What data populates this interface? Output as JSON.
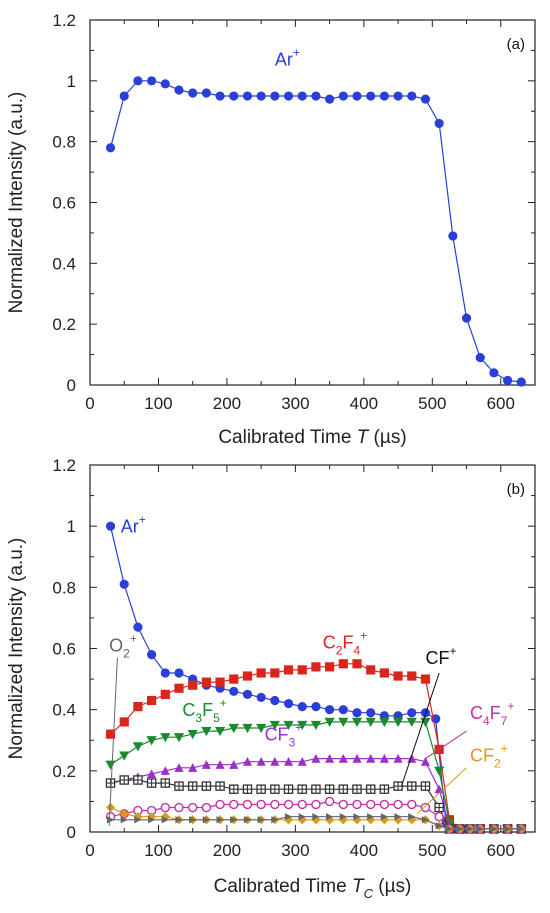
{
  "chart_data": [
    {
      "type": "line",
      "panel_label": "(a)",
      "xlabel": "Calibrated Time",
      "xlabel_var": "T",
      "xlabel_unit": "(µs)",
      "ylabel": "Normalized Intensity (a.u.)",
      "xlim": [
        0,
        650
      ],
      "ylim": [
        0,
        1.2
      ],
      "xticks": [
        "0",
        "100",
        "200",
        "300",
        "400",
        "500",
        "600"
      ],
      "yticks": [
        "0",
        "0.2",
        "0.4",
        "0.6",
        "0.8",
        "1",
        "1.2"
      ],
      "series": [
        {
          "name": "Ar+",
          "color": "#2b3fd6",
          "marker": "circle",
          "x": [
            30,
            50,
            70,
            90,
            110,
            130,
            150,
            170,
            190,
            210,
            230,
            250,
            270,
            290,
            310,
            330,
            350,
            370,
            390,
            410,
            430,
            450,
            470,
            490,
            510,
            530,
            550,
            570,
            590,
            610,
            630
          ],
          "y": [
            0.78,
            0.95,
            1.0,
            1.0,
            0.99,
            0.97,
            0.96,
            0.96,
            0.95,
            0.95,
            0.95,
            0.95,
            0.95,
            0.95,
            0.95,
            0.95,
            0.94,
            0.95,
            0.95,
            0.95,
            0.95,
            0.95,
            0.95,
            0.94,
            0.86,
            0.49,
            0.22,
            0.09,
            0.04,
            0.015,
            0.01
          ]
        }
      ],
      "annotations": [
        {
          "text": "Ar",
          "sup": "+",
          "x": 270,
          "y": 1.05,
          "color": "#2b3fd6"
        }
      ]
    },
    {
      "type": "line",
      "panel_label": "(b)",
      "xlabel": "Calibrated Time",
      "xlabel_var": "T",
      "xlabel_sub": "C",
      "xlabel_unit": "(µs)",
      "ylabel": "Normalized Intensity (a.u.)",
      "xlim": [
        0,
        650
      ],
      "ylim": [
        0,
        1.2
      ],
      "xticks": [
        "0",
        "100",
        "200",
        "300",
        "400",
        "500",
        "600"
      ],
      "yticks": [
        "0",
        "0.2",
        "0.4",
        "0.6",
        "0.8",
        "1",
        "1.2"
      ],
      "series": [
        {
          "name": "Ar+",
          "color": "#2b3fd6",
          "marker": "circle",
          "x": [
            30,
            50,
            70,
            90,
            110,
            130,
            150,
            170,
            190,
            210,
            230,
            250,
            270,
            290,
            310,
            330,
            350,
            370,
            390,
            410,
            430,
            450,
            470,
            490,
            505,
            520,
            535,
            550,
            570,
            590,
            610,
            630
          ],
          "y": [
            1.0,
            0.81,
            0.67,
            0.58,
            0.52,
            0.52,
            0.5,
            0.48,
            0.47,
            0.46,
            0.45,
            0.44,
            0.43,
            0.42,
            0.41,
            0.41,
            0.4,
            0.4,
            0.39,
            0.39,
            0.38,
            0.38,
            0.39,
            0.39,
            0.37,
            0.03,
            0.01,
            0.01,
            0.01,
            0.01,
            0.01,
            0.01
          ]
        },
        {
          "name": "C2F4+",
          "color": "#d8261c",
          "marker": "square",
          "x": [
            30,
            50,
            70,
            90,
            110,
            130,
            150,
            170,
            190,
            210,
            230,
            250,
            270,
            290,
            310,
            330,
            350,
            370,
            390,
            410,
            430,
            450,
            470,
            490,
            510,
            525,
            540,
            555,
            570,
            590,
            610,
            630
          ],
          "y": [
            0.32,
            0.36,
            0.41,
            0.43,
            0.45,
            0.47,
            0.48,
            0.49,
            0.49,
            0.5,
            0.51,
            0.52,
            0.52,
            0.53,
            0.53,
            0.54,
            0.54,
            0.55,
            0.55,
            0.53,
            0.52,
            0.51,
            0.51,
            0.5,
            0.27,
            0.04,
            0.01,
            0.01,
            0.01,
            0.01,
            0.01,
            0.01
          ]
        },
        {
          "name": "C3F5+",
          "color": "#1a8a2e",
          "marker": "triangle-down",
          "x": [
            30,
            50,
            70,
            90,
            110,
            130,
            150,
            170,
            190,
            210,
            230,
            250,
            270,
            290,
            310,
            330,
            350,
            370,
            390,
            410,
            430,
            450,
            470,
            490,
            510,
            525,
            540,
            555,
            570,
            590,
            610,
            630
          ],
          "y": [
            0.22,
            0.25,
            0.28,
            0.3,
            0.31,
            0.31,
            0.32,
            0.33,
            0.33,
            0.34,
            0.34,
            0.34,
            0.35,
            0.35,
            0.35,
            0.35,
            0.36,
            0.36,
            0.36,
            0.36,
            0.36,
            0.36,
            0.36,
            0.36,
            0.2,
            0.03,
            0.01,
            0.01,
            0.01,
            0.01,
            0.01,
            0.01
          ]
        },
        {
          "name": "CF3+",
          "color": "#9b30c8",
          "marker": "triangle-up",
          "x": [
            30,
            50,
            70,
            90,
            110,
            130,
            150,
            170,
            190,
            210,
            230,
            250,
            270,
            290,
            310,
            330,
            350,
            370,
            390,
            410,
            430,
            450,
            470,
            490,
            510,
            525,
            540,
            555,
            570,
            590,
            610,
            630
          ],
          "y": [
            0.16,
            0.17,
            0.18,
            0.19,
            0.2,
            0.21,
            0.21,
            0.22,
            0.22,
            0.22,
            0.23,
            0.23,
            0.23,
            0.23,
            0.23,
            0.24,
            0.24,
            0.24,
            0.24,
            0.24,
            0.24,
            0.24,
            0.24,
            0.23,
            0.14,
            0.02,
            0.01,
            0.01,
            0.01,
            0.01,
            0.01,
            0.01
          ]
        },
        {
          "name": "CF+",
          "color": "#333333",
          "marker": "square-open-cross",
          "x": [
            30,
            50,
            70,
            90,
            110,
            130,
            150,
            170,
            190,
            210,
            230,
            250,
            270,
            290,
            310,
            330,
            350,
            370,
            390,
            410,
            430,
            450,
            470,
            490,
            510,
            525,
            540,
            555,
            570,
            590,
            610,
            630
          ],
          "y": [
            0.16,
            0.17,
            0.17,
            0.16,
            0.16,
            0.15,
            0.15,
            0.15,
            0.15,
            0.14,
            0.14,
            0.14,
            0.14,
            0.14,
            0.14,
            0.14,
            0.14,
            0.14,
            0.14,
            0.14,
            0.14,
            0.15,
            0.15,
            0.15,
            0.08,
            0.01,
            0.01,
            0.01,
            0.01,
            0.01,
            0.01,
            0.01
          ]
        },
        {
          "name": "C4F7+",
          "color": "#c42fa6",
          "marker": "circle-open",
          "x": [
            30,
            50,
            70,
            90,
            110,
            130,
            150,
            170,
            190,
            210,
            230,
            250,
            270,
            290,
            310,
            330,
            350,
            370,
            390,
            410,
            430,
            450,
            470,
            490,
            510,
            525,
            540,
            555,
            570,
            590,
            610,
            630
          ],
          "y": [
            0.05,
            0.06,
            0.07,
            0.07,
            0.08,
            0.08,
            0.08,
            0.08,
            0.09,
            0.09,
            0.09,
            0.09,
            0.09,
            0.09,
            0.09,
            0.09,
            0.1,
            0.09,
            0.09,
            0.09,
            0.09,
            0.09,
            0.09,
            0.08,
            0.05,
            0.01,
            0.01,
            0.01,
            0.01,
            0.01,
            0.01,
            0.01
          ]
        },
        {
          "name": "CF2+",
          "color": "#d99a1a",
          "marker": "diamond",
          "x": [
            30,
            50,
            70,
            90,
            110,
            130,
            150,
            170,
            190,
            210,
            230,
            250,
            270,
            290,
            310,
            330,
            350,
            370,
            390,
            410,
            430,
            450,
            470,
            490,
            510,
            525,
            540,
            555,
            570,
            590,
            610,
            630
          ],
          "y": [
            0.08,
            0.06,
            0.05,
            0.05,
            0.05,
            0.04,
            0.04,
            0.04,
            0.04,
            0.04,
            0.04,
            0.04,
            0.04,
            0.04,
            0.04,
            0.04,
            0.04,
            0.04,
            0.04,
            0.04,
            0.04,
            0.04,
            0.04,
            0.04,
            0.02,
            0.01,
            0.01,
            0.01,
            0.01,
            0.01,
            0.01,
            0.01
          ]
        },
        {
          "name": "O2+",
          "color": "#666666",
          "marker": "triangle-right",
          "x": [
            30,
            50,
            70,
            90,
            110,
            130,
            150,
            170,
            190,
            210,
            230,
            250,
            270,
            290,
            310,
            330,
            350,
            370,
            390,
            410,
            430,
            450,
            470,
            490,
            510,
            525,
            540,
            555,
            570,
            590,
            610,
            630
          ],
          "y": [
            0.04,
            0.04,
            0.04,
            0.04,
            0.04,
            0.04,
            0.04,
            0.04,
            0.04,
            0.04,
            0.04,
            0.04,
            0.04,
            0.05,
            0.05,
            0.05,
            0.05,
            0.05,
            0.05,
            0.05,
            0.05,
            0.05,
            0.05,
            0.04,
            0.02,
            0.01,
            0.01,
            0.01,
            0.01,
            0.01,
            0.01,
            0.01
          ]
        }
      ],
      "annotations": [
        {
          "text": "Ar",
          "sup": "+",
          "color": "#2b3fd6",
          "x": 45,
          "y": 0.98
        },
        {
          "text": "C",
          "sub": "2",
          "text2": "F",
          "sub2": "4",
          "sup": "+",
          "color": "#d8261c",
          "x": 340,
          "y": 0.6
        },
        {
          "text": "CF",
          "sup": "+",
          "color": "#111111",
          "x": 490,
          "y": 0.55
        },
        {
          "text": "O",
          "sub": "2",
          "sup": "+",
          "color": "#666666",
          "x": 28,
          "y": 0.59
        },
        {
          "text": "C",
          "sub": "3",
          "text2": "F",
          "sub2": "5",
          "sup": "+",
          "color": "#1a8a2e",
          "x": 135,
          "y": 0.38
        },
        {
          "text": "CF",
          "sub": "3",
          "sup": "+",
          "color": "#9b30c8",
          "x": 255,
          "y": 0.3
        },
        {
          "text": "C",
          "sub": "4",
          "text2": "F",
          "sub2": "7",
          "sup": "+",
          "color": "#c42fa6",
          "x": 555,
          "y": 0.37
        },
        {
          "text": "CF",
          "sub": "2",
          "sup": "+",
          "color": "#d99a1a",
          "x": 555,
          "y": 0.23
        }
      ]
    }
  ]
}
